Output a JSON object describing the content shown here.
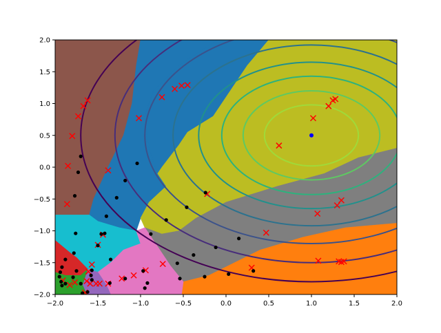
{
  "chart_data": {
    "type": "scatter",
    "title": "",
    "xlabel": "",
    "ylabel": "",
    "xlim": [
      -2.0,
      2.0
    ],
    "ylim": [
      -2.0,
      2.0
    ],
    "grid": false,
    "legend": "none",
    "x_ticks": [
      "−2.0",
      "−1.5",
      "−1.0",
      "−0.5",
      "0.0",
      "0.5",
      "1.0",
      "1.5",
      "2.0"
    ],
    "y_ticks": [
      "−2.0",
      "−1.5",
      "−1.0",
      "−0.5",
      "0.0",
      "0.5",
      "1.0",
      "1.5",
      "2.0"
    ],
    "x_tick_values": [
      -2.0,
      -1.5,
      -1.0,
      -0.5,
      0.0,
      0.5,
      1.0,
      1.5,
      2.0
    ],
    "y_tick_values": [
      -2.0,
      -1.5,
      -1.0,
      -0.5,
      0.0,
      0.5,
      1.0,
      1.5,
      2.0
    ],
    "background": "voronoi-style class regions",
    "regions": [
      {
        "color": "#8c564b",
        "polygon": [
          [
            -2.0,
            2.0
          ],
          [
            -1.0,
            2.0
          ],
          [
            -1.05,
            1.6
          ],
          [
            -1.1,
            1.0
          ],
          [
            -1.2,
            0.5
          ],
          [
            -1.38,
            0.0
          ],
          [
            -1.55,
            -0.5
          ],
          [
            -1.6,
            -0.75
          ],
          [
            -2.0,
            -0.75
          ]
        ]
      },
      {
        "color": "#1f77b4",
        "polygon": [
          [
            -1.0,
            2.0
          ],
          [
            -0.1,
            2.0
          ],
          [
            -0.55,
            1.6
          ],
          [
            -0.85,
            1.2
          ],
          [
            -0.95,
            0.8
          ],
          [
            -0.9,
            0.3
          ],
          [
            -0.8,
            -0.1
          ],
          [
            -0.7,
            -0.3
          ],
          [
            -0.9,
            -0.55
          ],
          [
            -1.0,
            -0.8
          ],
          [
            -1.05,
            -1.0
          ],
          [
            -1.25,
            -0.95
          ],
          [
            -1.5,
            -0.85
          ],
          [
            -1.6,
            -0.75
          ],
          [
            -1.55,
            -0.5
          ],
          [
            -1.38,
            0.0
          ],
          [
            -1.2,
            0.5
          ],
          [
            -1.1,
            1.0
          ],
          [
            -1.05,
            1.6
          ]
        ]
      },
      {
        "color": "#1f77b4",
        "polygon": [
          [
            -0.1,
            2.0
          ],
          [
            0.5,
            2.0
          ],
          [
            0.25,
            1.6
          ],
          [
            0.05,
            1.2
          ],
          [
            -0.15,
            0.8
          ],
          [
            -0.45,
            0.55
          ],
          [
            -0.55,
            0.35
          ],
          [
            -0.75,
            0.0
          ],
          [
            -0.8,
            -0.1
          ],
          [
            -0.9,
            0.3
          ],
          [
            -0.95,
            0.8
          ],
          [
            -0.85,
            1.2
          ],
          [
            -0.55,
            1.6
          ]
        ]
      },
      {
        "color": "#bcbd22",
        "polygon": [
          [
            0.5,
            2.0
          ],
          [
            2.0,
            2.0
          ],
          [
            2.0,
            0.3
          ],
          [
            1.55,
            0.15
          ],
          [
            1.15,
            -0.1
          ],
          [
            0.6,
            -0.3
          ],
          [
            0.0,
            -0.55
          ],
          [
            -0.35,
            -0.8
          ],
          [
            -0.55,
            -1.0
          ],
          [
            -0.75,
            -1.05
          ],
          [
            -0.95,
            -0.95
          ],
          [
            -1.0,
            -0.8
          ],
          [
            -0.9,
            -0.55
          ],
          [
            -0.7,
            -0.3
          ],
          [
            -0.8,
            -0.1
          ],
          [
            -0.75,
            0.0
          ],
          [
            -0.55,
            0.35
          ],
          [
            -0.45,
            0.55
          ],
          [
            -0.15,
            0.8
          ],
          [
            0.05,
            1.2
          ],
          [
            0.25,
            1.6
          ]
        ]
      },
      {
        "color": "#7f7f7f",
        "polygon": [
          [
            2.0,
            0.3
          ],
          [
            2.0,
            -0.88
          ],
          [
            1.4,
            -0.95
          ],
          [
            0.9,
            -1.1
          ],
          [
            0.4,
            -1.3
          ],
          [
            0.1,
            -1.5
          ],
          [
            -0.2,
            -1.7
          ],
          [
            -0.5,
            -1.8
          ],
          [
            -0.65,
            -1.55
          ],
          [
            -0.8,
            -1.25
          ],
          [
            -0.95,
            -0.95
          ],
          [
            -0.75,
            -1.05
          ],
          [
            -0.55,
            -1.0
          ],
          [
            -0.35,
            -0.8
          ],
          [
            0.0,
            -0.55
          ],
          [
            0.6,
            -0.3
          ],
          [
            1.15,
            -0.1
          ],
          [
            1.55,
            0.15
          ]
        ]
      },
      {
        "color": "#ff7f0e",
        "polygon": [
          [
            2.0,
            -0.88
          ],
          [
            2.0,
            -2.0
          ],
          [
            -0.52,
            -2.0
          ],
          [
            -0.5,
            -1.8
          ],
          [
            -0.2,
            -1.7
          ],
          [
            0.1,
            -1.5
          ],
          [
            0.4,
            -1.3
          ],
          [
            0.9,
            -1.1
          ],
          [
            1.4,
            -0.95
          ]
        ]
      },
      {
        "color": "#17becf",
        "polygon": [
          [
            -2.0,
            -0.75
          ],
          [
            -1.6,
            -0.75
          ],
          [
            -1.5,
            -0.85
          ],
          [
            -1.25,
            -0.95
          ],
          [
            -1.05,
            -1.0
          ],
          [
            -1.0,
            -1.2
          ],
          [
            -1.2,
            -1.3
          ],
          [
            -1.35,
            -1.5
          ],
          [
            -1.5,
            -1.65
          ],
          [
            -1.62,
            -1.6
          ],
          [
            -1.75,
            -1.42
          ],
          [
            -1.82,
            -1.35
          ],
          [
            -2.0,
            -1.15
          ]
        ]
      },
      {
        "color": "#e377c2",
        "polygon": [
          [
            -1.05,
            -1.0
          ],
          [
            -0.95,
            -0.95
          ],
          [
            -0.8,
            -1.25
          ],
          [
            -0.65,
            -1.55
          ],
          [
            -0.5,
            -1.8
          ],
          [
            -0.52,
            -2.0
          ],
          [
            -1.35,
            -2.0
          ],
          [
            -1.4,
            -1.85
          ],
          [
            -1.5,
            -1.65
          ],
          [
            -1.35,
            -1.5
          ],
          [
            -1.2,
            -1.3
          ],
          [
            -1.0,
            -1.2
          ]
        ]
      },
      {
        "color": "#9467bd",
        "polygon": [
          [
            -1.5,
            -1.65
          ],
          [
            -1.4,
            -1.85
          ],
          [
            -1.35,
            -2.0
          ],
          [
            -1.63,
            -2.0
          ],
          [
            -1.68,
            -1.85
          ],
          [
            -1.62,
            -1.6
          ]
        ]
      },
      {
        "color": "#d62728",
        "polygon": [
          [
            -2.0,
            -1.15
          ],
          [
            -1.82,
            -1.35
          ],
          [
            -1.75,
            -1.42
          ],
          [
            -1.62,
            -1.6
          ],
          [
            -1.7,
            -1.7
          ],
          [
            -1.88,
            -1.7
          ],
          [
            -2.0,
            -1.65
          ]
        ]
      },
      {
        "color": "#2ca02c",
        "polygon": [
          [
            -2.0,
            -1.65
          ],
          [
            -1.88,
            -1.7
          ],
          [
            -1.7,
            -1.7
          ],
          [
            -1.62,
            -1.6
          ],
          [
            -1.68,
            -1.85
          ],
          [
            -1.63,
            -2.0
          ],
          [
            -2.0,
            -2.0
          ]
        ]
      }
    ],
    "contours": {
      "center": [
        1.0,
        0.5
      ],
      "semi_axes": [
        [
          0.55,
          0.48
        ],
        [
          0.8,
          0.7
        ],
        [
          1.05,
          0.93
        ],
        [
          1.32,
          1.15
        ],
        [
          1.62,
          1.42
        ],
        [
          1.95,
          1.7
        ],
        [
          2.3,
          2.0
        ],
        [
          2.7,
          2.3
        ]
      ],
      "colors": [
        "#a0da39",
        "#5ec962",
        "#2db27d",
        "#21918c",
        "#2c728e",
        "#3b528b",
        "#472d7b",
        "#440154"
      ]
    },
    "series": [
      {
        "marker": "x",
        "color": "#ff0000",
        "points": [
          [
            -1.62,
            1.05
          ],
          [
            -1.67,
            0.96
          ],
          [
            -1.73,
            0.8
          ],
          [
            -1.8,
            0.49
          ],
          [
            -1.85,
            0.02
          ],
          [
            -1.86,
            -0.58
          ],
          [
            -1.38,
            -0.05
          ],
          [
            -1.02,
            0.77
          ],
          [
            -0.75,
            1.1
          ],
          [
            -0.6,
            1.23
          ],
          [
            -0.52,
            1.28
          ],
          [
            -0.45,
            1.29
          ],
          [
            -0.22,
            -0.42
          ],
          [
            0.3,
            -1.58
          ],
          [
            0.47,
            -1.03
          ],
          [
            0.62,
            0.34
          ],
          [
            1.02,
            0.77
          ],
          [
            1.07,
            -0.73
          ],
          [
            1.08,
            -1.47
          ],
          [
            1.2,
            0.96
          ],
          [
            1.25,
            1.05
          ],
          [
            1.28,
            1.07
          ],
          [
            1.3,
            -0.6
          ],
          [
            1.32,
            -1.48
          ],
          [
            1.35,
            -0.52
          ],
          [
            1.35,
            -1.49
          ],
          [
            1.38,
            -1.48
          ],
          [
            -0.74,
            -1.52
          ],
          [
            -1.44,
            -1.06
          ],
          [
            -1.5,
            -1.22
          ],
          [
            -1.57,
            -1.53
          ],
          [
            -1.61,
            -1.64
          ],
          [
            -1.63,
            -1.79
          ],
          [
            -1.59,
            -1.83
          ],
          [
            -1.65,
            -1.97
          ],
          [
            -1.48,
            -1.83
          ],
          [
            -1.38,
            -1.83
          ],
          [
            -1.22,
            -1.75
          ],
          [
            -1.08,
            -1.7
          ],
          [
            -0.94,
            -1.62
          ],
          [
            -1.77,
            -1.81
          ],
          [
            -1.83,
            -1.85
          ],
          [
            -1.91,
            -1.78
          ],
          [
            -1.52,
            -1.83
          ]
        ]
      },
      {
        "marker": "dot",
        "color": "#000000",
        "points": [
          [
            -1.7,
            0.17
          ],
          [
            -1.73,
            -0.08
          ],
          [
            -1.77,
            -0.45
          ],
          [
            -1.76,
            -1.04
          ],
          [
            -1.78,
            -1.35
          ],
          [
            -1.88,
            -1.45
          ],
          [
            -1.92,
            -1.57
          ],
          [
            -1.94,
            -1.65
          ],
          [
            -1.95,
            -1.72
          ],
          [
            -1.93,
            -1.8
          ],
          [
            -1.92,
            -1.86
          ],
          [
            -1.88,
            -1.83
          ],
          [
            -1.79,
            -1.73
          ],
          [
            -1.75,
            -1.63
          ],
          [
            -1.7,
            -1.83
          ],
          [
            -1.68,
            -1.98
          ],
          [
            -1.62,
            -1.96
          ],
          [
            -1.57,
            -1.77
          ],
          [
            -1.58,
            -1.7
          ],
          [
            -1.57,
            -1.62
          ],
          [
            -1.5,
            -1.23
          ],
          [
            -1.46,
            -1.05
          ],
          [
            -1.42,
            -1.04
          ],
          [
            -1.4,
            -0.77
          ],
          [
            -1.35,
            -1.45
          ],
          [
            -1.36,
            -1.82
          ],
          [
            -1.28,
            -0.48
          ],
          [
            -1.18,
            -0.21
          ],
          [
            -1.18,
            -1.75
          ],
          [
            -1.04,
            0.06
          ],
          [
            -0.95,
            -1.9
          ],
          [
            -0.97,
            -1.63
          ],
          [
            -0.92,
            -1.82
          ],
          [
            -0.88,
            -1.05
          ],
          [
            -0.7,
            -0.83
          ],
          [
            -0.57,
            -1.51
          ],
          [
            -0.54,
            -1.75
          ],
          [
            -0.46,
            -0.63
          ],
          [
            -0.38,
            -1.38
          ],
          [
            -0.25,
            -1.72
          ],
          [
            -0.24,
            -0.4
          ],
          [
            -0.12,
            -1.26
          ],
          [
            0.03,
            -1.68
          ],
          [
            0.15,
            -1.12
          ],
          [
            0.32,
            -1.63
          ]
        ]
      },
      {
        "marker": "dot",
        "color": "#0000ff",
        "points": [
          [
            1.0,
            0.5
          ]
        ]
      }
    ]
  }
}
